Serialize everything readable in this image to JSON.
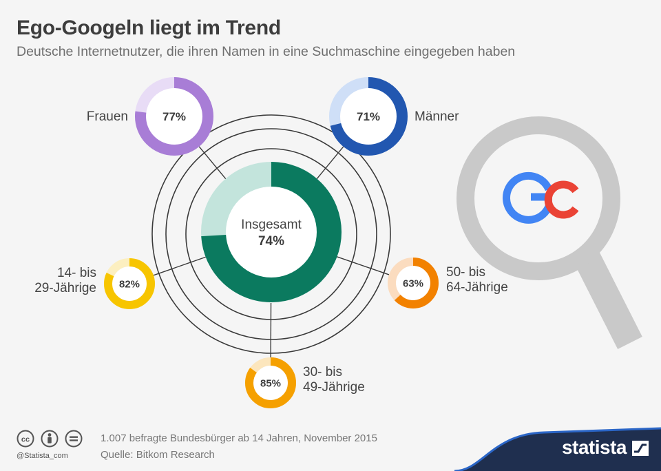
{
  "header": {
    "title": "Ego-Googeln liegt im Trend",
    "subtitle": "Deutsche Internetnutzer, die ihren Namen in eine Suchmaschine eingegeben haben"
  },
  "chart_data": {
    "type": "pie",
    "title": "Ego-Googeln liegt im Trend",
    "subtitle": "Deutsche Internetnutzer, die ihren Namen in eine Suchmaschine eingegeben haben",
    "unit": "%",
    "segments": [
      {
        "key": "insgesamt",
        "label_lines": [
          "Insgesamt"
        ],
        "value": 74,
        "display": "74%",
        "color": "#0b7a5f",
        "rest_color": "#c3e4dc"
      },
      {
        "key": "frauen",
        "label_lines": [
          "Frauen"
        ],
        "value": 77,
        "display": "77%",
        "color": "#a87dd6",
        "rest_color": "#e8dcf6"
      },
      {
        "key": "maenner",
        "label_lines": [
          "Männer"
        ],
        "value": 71,
        "display": "71%",
        "color": "#2257b0",
        "rest_color": "#cfdff7"
      },
      {
        "key": "age14_29",
        "label_lines": [
          "14- bis",
          "29-Jährige"
        ],
        "value": 82,
        "display": "82%",
        "color": "#f7c500",
        "rest_color": "#fcefc0"
      },
      {
        "key": "age30_49",
        "label_lines": [
          "30- bis",
          "49-Jährige"
        ],
        "value": 85,
        "display": "85%",
        "color": "#f5a000",
        "rest_color": "#fce6bd"
      },
      {
        "key": "age50_64",
        "label_lines": [
          "50- bis",
          "64-Jährige"
        ],
        "value": 63,
        "display": "63%",
        "color": "#f28100",
        "rest_color": "#fbdcbf"
      }
    ]
  },
  "illustration": {
    "icon": "magnifying-glass-icon",
    "letter": "G",
    "glass_color": "#c9c9c9",
    "google_colors": [
      "#4285f4",
      "#ea4335"
    ]
  },
  "footer": {
    "license_icons": [
      "cc-icon",
      "by-icon",
      "nd-icon"
    ],
    "handle": "@Statista_com",
    "note": "1.007 befragte Bundesbürger ab 14 Jahren, November 2015",
    "source": "Quelle: Bitkom Research",
    "brand": "statista",
    "brand_color": "#1f2f4f"
  }
}
